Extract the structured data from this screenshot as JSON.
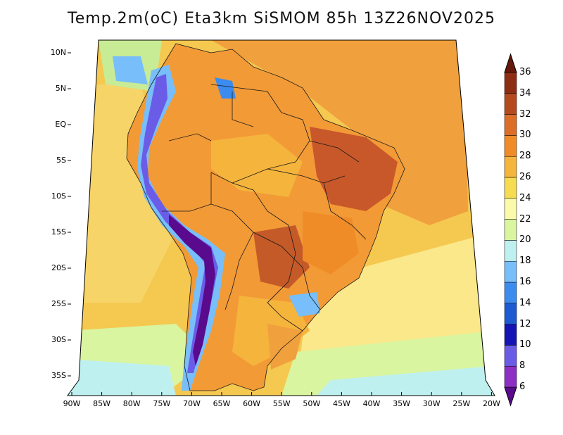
{
  "title": "Temp.2m(oC) Eta3km SiSMOM 85h 13Z26NOV2025",
  "lat_labels": [
    "10N",
    "5N",
    "EQ",
    "5S",
    "10S",
    "15S",
    "20S",
    "25S",
    "30S",
    "35S"
  ],
  "lon_labels": [
    "90W",
    "85W",
    "80W",
    "75W",
    "70W",
    "65W",
    "60W",
    "55W",
    "50W",
    "45W",
    "40W",
    "35W",
    "30W",
    "25W",
    "20W"
  ],
  "colorbar": {
    "levels": [
      "6",
      "8",
      "10",
      "12",
      "14",
      "16",
      "18",
      "20",
      "22",
      "24",
      "26",
      "28",
      "30",
      "32",
      "34",
      "36"
    ],
    "colors": [
      "#5a0a8c",
      "#8e2fc4",
      "#6b5ce8",
      "#1414b4",
      "#1e5ad2",
      "#3c8cf0",
      "#78befa",
      "#bff0f0",
      "#d9f5a0",
      "#fafaaa",
      "#f5dc50",
      "#f5b43c",
      "#f08c28",
      "#dc6e28",
      "#b44a1e",
      "#8c2d14",
      "#64190a"
    ]
  },
  "colors": {
    "ocean_warm": "#f0a03c",
    "ocean_mild": "#f5c850",
    "ocean_cool": "#fae88a",
    "ocean_cold": "#c8eb96",
    "border": "#1a1a1a"
  }
}
